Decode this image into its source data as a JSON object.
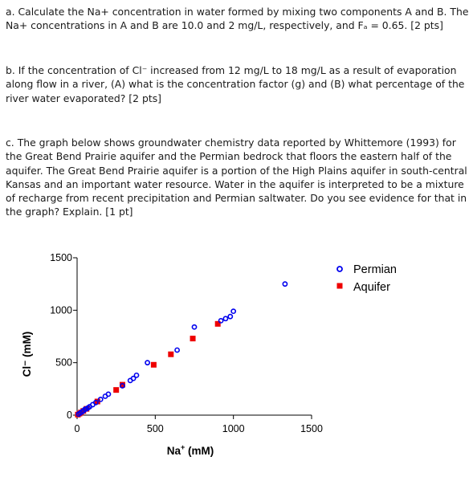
{
  "questions": {
    "a": "a. Calculate the Na+ concentration in water formed by mixing two components A and B. The Na+ concentrations in A and B are 10.0 and 2 mg/L, respectively, and Fₐ = 0.65. [2 pts]",
    "b": "b. If the concentration of Cl⁻ increased from 12 mg/L to 18 mg/L as a result of evaporation along flow in a river, (A) what is the concentration factor (g) and (B) what percentage of the river water evaporated? [2 pts]",
    "c": "c. The graph below shows groundwater chemistry data reported by Whittemore (1993) for the Great Bend Prairie aquifer and the Permian bedrock that floors the eastern half of the aquifer. The Great Bend Prairie aquifer is a portion of the High Plains aquifer in south-central Kansas and an important water resource.  Water in the aquifer is interpreted to be a mixture of recharge from recent precipitation and Permian saltwater. Do you see evidence for that in the graph? Explain. [1 pt]"
  },
  "colors": {
    "permian": "#0000ee",
    "aquifer": "#ee0000"
  },
  "chart_data": {
    "type": "scatter",
    "xlabel_main": "Na",
    "xlabel_sup": "+",
    "xlabel_unit": " (mM)",
    "ylabel": "Cl⁻ (mM)",
    "xlim": [
      0,
      1500
    ],
    "ylim": [
      0,
      1500
    ],
    "xticks": [
      "0",
      "500",
      "1000",
      "1500"
    ],
    "yticks": [
      "0",
      "500",
      "1000",
      "1500"
    ],
    "legend_position": "top-right",
    "series": [
      {
        "name": "Permian",
        "marker": "open-circle",
        "x": [
          10,
          20,
          30,
          40,
          50,
          60,
          70,
          80,
          100,
          120,
          150,
          180,
          200,
          290,
          340,
          360,
          380,
          450,
          640,
          750,
          920,
          950,
          980,
          1000,
          1330
        ],
        "y": [
          10,
          20,
          30,
          40,
          55,
          60,
          70,
          80,
          100,
          120,
          150,
          180,
          200,
          280,
          330,
          350,
          380,
          500,
          620,
          840,
          900,
          920,
          940,
          990,
          1250
        ]
      },
      {
        "name": "Aquifer",
        "marker": "filled-square",
        "x": [
          5,
          15,
          25,
          40,
          60,
          130,
          250,
          290,
          490,
          600,
          740,
          900
        ],
        "y": [
          5,
          15,
          25,
          40,
          60,
          130,
          240,
          290,
          480,
          580,
          730,
          870
        ]
      }
    ]
  }
}
